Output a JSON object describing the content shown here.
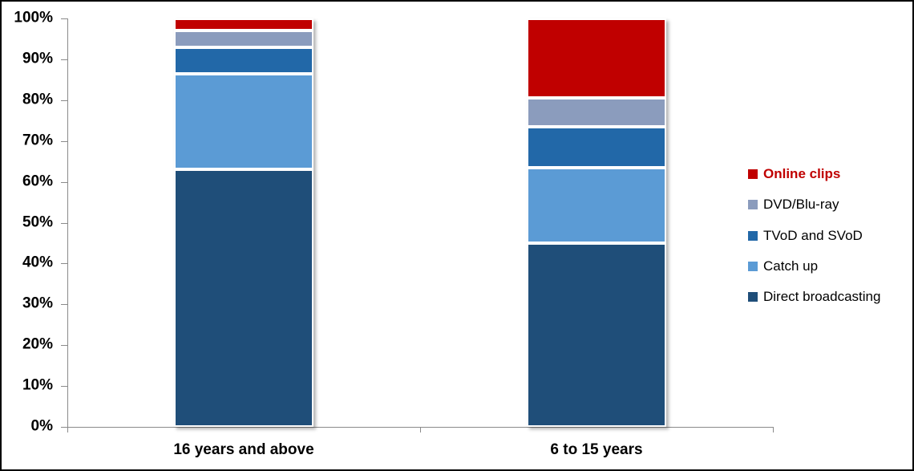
{
  "chart_data": {
    "type": "bar",
    "stacked": true,
    "percent_stacked": true,
    "title": "",
    "categories": [
      "16 years and above",
      "6 to 15 years"
    ],
    "series": [
      {
        "name": "Direct broadcasting",
        "color": "#1F4E79",
        "values": [
          63,
          45
        ]
      },
      {
        "name": "Catch up",
        "color": "#5B9BD5",
        "values": [
          23.5,
          18.5
        ]
      },
      {
        "name": "TVoD and SVoD",
        "color": "#2268A8",
        "values": [
          6.5,
          10
        ]
      },
      {
        "name": "DVD/Blu-ray",
        "color": "#8B9CBD",
        "values": [
          4,
          7
        ]
      },
      {
        "name": "Online clips",
        "color": "#C00000",
        "values": [
          3,
          19.5
        ],
        "legend_text_color": "#C00000",
        "legend_bold": true
      }
    ],
    "y_axis": {
      "min": 0,
      "max": 100,
      "tick_step": 10,
      "tick_labels": [
        "0%",
        "10%",
        "20%",
        "30%",
        "40%",
        "50%",
        "60%",
        "70%",
        "80%",
        "90%",
        "100%"
      ]
    },
    "legend": {
      "position": "right",
      "order": [
        "Online clips",
        "DVD/Blu-ray",
        "TVoD and SVoD",
        "Catch up",
        "Direct broadcasting"
      ]
    },
    "grid": false
  },
  "colors": {
    "axis": "#8A8A8A",
    "text": "#000000",
    "frame_border": "#000000",
    "background": "#FFFFFF"
  }
}
